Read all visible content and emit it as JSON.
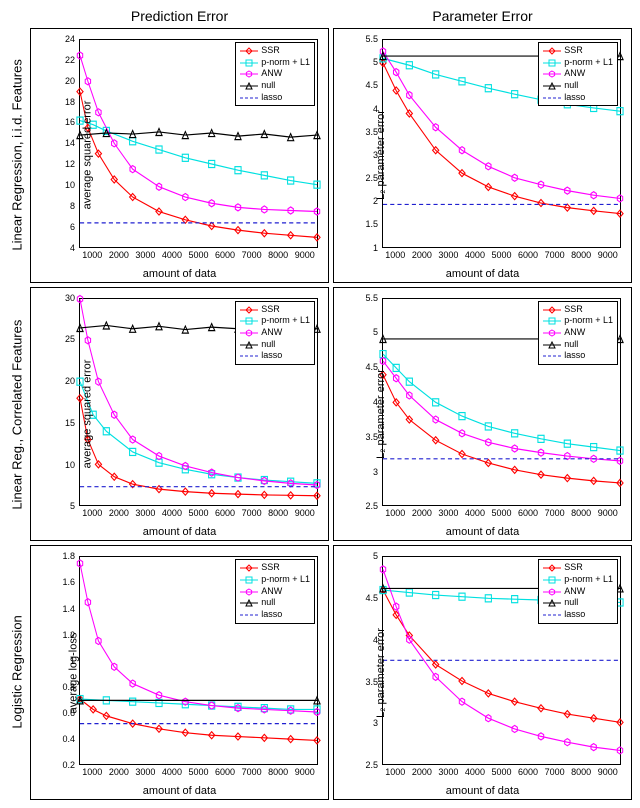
{
  "column_titles": [
    "Prediction Error",
    "Parameter Error"
  ],
  "row_titles": [
    "Linear Regression, i.i.d. Features",
    "Linear Reg., Correlated Features",
    "Logistic Regression"
  ],
  "xlabel": "amount of data",
  "xlim": [
    500,
    9500
  ],
  "xticks": [
    1000,
    2000,
    3000,
    4000,
    5000,
    6000,
    7000,
    8000,
    9000
  ],
  "legend": [
    {
      "label": "SSR",
      "color": "#ff0000",
      "marker": "diamond",
      "dash": false
    },
    {
      "label": "p-norm + L1",
      "color": "#00e0e0",
      "marker": "square",
      "dash": false
    },
    {
      "label": "ANW",
      "color": "#ff00ff",
      "marker": "hex",
      "dash": false
    },
    {
      "label": "null",
      "color": "#000000",
      "marker": "triangle",
      "dash": false
    },
    {
      "label": "lasso",
      "color": "#2020d0",
      "marker": null,
      "dash": true
    }
  ],
  "panels": [
    {
      "ylabel": "average squared error",
      "ylim": [
        4,
        24
      ],
      "yticks": [
        4,
        6,
        8,
        10,
        12,
        14,
        16,
        18,
        20,
        22,
        24
      ],
      "series": {
        "SSR": [
          [
            500,
            19
          ],
          [
            800,
            15.5
          ],
          [
            1200,
            13
          ],
          [
            1800,
            10.5
          ],
          [
            2500,
            8.8
          ],
          [
            3500,
            7.4
          ],
          [
            4500,
            6.6
          ],
          [
            5500,
            6.0
          ],
          [
            6500,
            5.6
          ],
          [
            7500,
            5.3
          ],
          [
            8500,
            5.1
          ],
          [
            9500,
            4.9
          ]
        ],
        "pnorm": [
          [
            500,
            16.2
          ],
          [
            1000,
            15.8
          ],
          [
            1500,
            15.2
          ],
          [
            2500,
            14.2
          ],
          [
            3500,
            13.4
          ],
          [
            4500,
            12.6
          ],
          [
            5500,
            12.0
          ],
          [
            6500,
            11.4
          ],
          [
            7500,
            10.9
          ],
          [
            8500,
            10.4
          ],
          [
            9500,
            10.0
          ]
        ],
        "ANW": [
          [
            500,
            22.5
          ],
          [
            800,
            20
          ],
          [
            1200,
            17
          ],
          [
            1800,
            14
          ],
          [
            2500,
            11.5
          ],
          [
            3500,
            9.8
          ],
          [
            4500,
            8.8
          ],
          [
            5500,
            8.2
          ],
          [
            6500,
            7.8
          ],
          [
            7500,
            7.6
          ],
          [
            8500,
            7.5
          ],
          [
            9500,
            7.4
          ]
        ],
        "null": [
          [
            500,
            14.8
          ],
          [
            1500,
            15.0
          ],
          [
            2500,
            14.9
          ],
          [
            3500,
            15.1
          ],
          [
            4500,
            14.8
          ],
          [
            5500,
            15.0
          ],
          [
            6500,
            14.7
          ],
          [
            7500,
            14.9
          ],
          [
            8500,
            14.6
          ],
          [
            9500,
            14.8
          ]
        ],
        "lasso": [
          [
            500,
            6.3
          ],
          [
            9500,
            6.3
          ]
        ]
      }
    },
    {
      "ylabel": "L₂ parameter error",
      "ylim": [
        1,
        5.5
      ],
      "yticks": [
        1,
        1.5,
        2,
        2.5,
        3,
        3.5,
        4,
        4.5,
        5,
        5.5
      ],
      "series": {
        "SSR": [
          [
            500,
            5.0
          ],
          [
            1000,
            4.4
          ],
          [
            1500,
            3.9
          ],
          [
            2500,
            3.1
          ],
          [
            3500,
            2.6
          ],
          [
            4500,
            2.3
          ],
          [
            5500,
            2.1
          ],
          [
            6500,
            1.95
          ],
          [
            7500,
            1.85
          ],
          [
            8500,
            1.78
          ],
          [
            9500,
            1.72
          ]
        ],
        "pnorm": [
          [
            500,
            5.1
          ],
          [
            1500,
            4.95
          ],
          [
            2500,
            4.75
          ],
          [
            3500,
            4.6
          ],
          [
            4500,
            4.45
          ],
          [
            5500,
            4.32
          ],
          [
            6500,
            4.2
          ],
          [
            7500,
            4.1
          ],
          [
            8500,
            4.02
          ],
          [
            9500,
            3.95
          ]
        ],
        "ANW": [
          [
            500,
            5.25
          ],
          [
            1000,
            4.8
          ],
          [
            1500,
            4.3
          ],
          [
            2500,
            3.6
          ],
          [
            3500,
            3.1
          ],
          [
            4500,
            2.75
          ],
          [
            5500,
            2.5
          ],
          [
            6500,
            2.35
          ],
          [
            7500,
            2.22
          ],
          [
            8500,
            2.12
          ],
          [
            9500,
            2.05
          ]
        ],
        "null": [
          [
            500,
            5.15
          ],
          [
            9500,
            5.15
          ]
        ],
        "lasso": [
          [
            500,
            1.92
          ],
          [
            9500,
            1.92
          ]
        ]
      }
    },
    {
      "ylabel": "average squared error",
      "ylim": [
        5,
        30
      ],
      "yticks": [
        5,
        10,
        15,
        20,
        25,
        30
      ],
      "series": {
        "SSR": [
          [
            500,
            18
          ],
          [
            800,
            13
          ],
          [
            1200,
            10
          ],
          [
            1800,
            8.5
          ],
          [
            2500,
            7.6
          ],
          [
            3500,
            7.0
          ],
          [
            4500,
            6.7
          ],
          [
            5500,
            6.5
          ],
          [
            6500,
            6.4
          ],
          [
            7500,
            6.3
          ],
          [
            8500,
            6.25
          ],
          [
            9500,
            6.2
          ]
        ],
        "pnorm": [
          [
            500,
            20
          ],
          [
            1000,
            16
          ],
          [
            1500,
            14
          ],
          [
            2500,
            11.5
          ],
          [
            3500,
            10.2
          ],
          [
            4500,
            9.4
          ],
          [
            5500,
            8.8
          ],
          [
            6500,
            8.4
          ],
          [
            7500,
            8.1
          ],
          [
            8500,
            7.9
          ],
          [
            9500,
            7.7
          ]
        ],
        "ANW": [
          [
            500,
            30
          ],
          [
            800,
            25
          ],
          [
            1200,
            20
          ],
          [
            1800,
            16
          ],
          [
            2500,
            13
          ],
          [
            3500,
            11
          ],
          [
            4500,
            9.8
          ],
          [
            5500,
            9.0
          ],
          [
            6500,
            8.4
          ],
          [
            7500,
            8.0
          ],
          [
            8500,
            7.7
          ],
          [
            9500,
            7.5
          ]
        ],
        "null": [
          [
            500,
            26.5
          ],
          [
            1500,
            26.8
          ],
          [
            2500,
            26.4
          ],
          [
            3500,
            26.7
          ],
          [
            4500,
            26.3
          ],
          [
            5500,
            26.6
          ],
          [
            6500,
            26.4
          ],
          [
            7500,
            26.5
          ],
          [
            8500,
            26.3
          ],
          [
            9500,
            26.4
          ]
        ],
        "lasso": [
          [
            500,
            7.3
          ],
          [
            9500,
            7.3
          ]
        ]
      }
    },
    {
      "ylabel": "L₂ parameter error",
      "ylim": [
        2.5,
        5.5
      ],
      "yticks": [
        2.5,
        3,
        3.5,
        4,
        4.5,
        5,
        5.5
      ],
      "series": {
        "SSR": [
          [
            500,
            4.4
          ],
          [
            1000,
            4.0
          ],
          [
            1500,
            3.75
          ],
          [
            2500,
            3.45
          ],
          [
            3500,
            3.25
          ],
          [
            4500,
            3.12
          ],
          [
            5500,
            3.02
          ],
          [
            6500,
            2.95
          ],
          [
            7500,
            2.9
          ],
          [
            8500,
            2.86
          ],
          [
            9500,
            2.83
          ]
        ],
        "pnorm": [
          [
            500,
            4.7
          ],
          [
            1000,
            4.5
          ],
          [
            1500,
            4.3
          ],
          [
            2500,
            4.0
          ],
          [
            3500,
            3.8
          ],
          [
            4500,
            3.65
          ],
          [
            5500,
            3.55
          ],
          [
            6500,
            3.47
          ],
          [
            7500,
            3.4
          ],
          [
            8500,
            3.35
          ],
          [
            9500,
            3.3
          ]
        ],
        "ANW": [
          [
            500,
            4.6
          ],
          [
            1000,
            4.35
          ],
          [
            1500,
            4.1
          ],
          [
            2500,
            3.75
          ],
          [
            3500,
            3.55
          ],
          [
            4500,
            3.42
          ],
          [
            5500,
            3.33
          ],
          [
            6500,
            3.27
          ],
          [
            7500,
            3.22
          ],
          [
            8500,
            3.18
          ],
          [
            9500,
            3.15
          ]
        ],
        "null": [
          [
            500,
            4.92
          ],
          [
            9500,
            4.92
          ]
        ],
        "lasso": [
          [
            500,
            3.18
          ],
          [
            9500,
            3.18
          ]
        ]
      }
    },
    {
      "ylabel": "average log-loss",
      "ylim": [
        0.2,
        1.8
      ],
      "yticks": [
        0.2,
        0.4,
        0.6,
        0.8,
        1,
        1.2,
        1.4,
        1.6,
        1.8
      ],
      "series": {
        "SSR": [
          [
            500,
            0.7
          ],
          [
            1000,
            0.62
          ],
          [
            1500,
            0.57
          ],
          [
            2500,
            0.51
          ],
          [
            3500,
            0.47
          ],
          [
            4500,
            0.44
          ],
          [
            5500,
            0.42
          ],
          [
            6500,
            0.41
          ],
          [
            7500,
            0.4
          ],
          [
            8500,
            0.39
          ],
          [
            9500,
            0.38
          ]
        ],
        "pnorm": [
          [
            500,
            0.7
          ],
          [
            1500,
            0.69
          ],
          [
            2500,
            0.68
          ],
          [
            3500,
            0.67
          ],
          [
            4500,
            0.66
          ],
          [
            5500,
            0.65
          ],
          [
            6500,
            0.64
          ],
          [
            7500,
            0.63
          ],
          [
            8500,
            0.62
          ],
          [
            9500,
            0.62
          ]
        ],
        "ANW": [
          [
            500,
            1.75
          ],
          [
            800,
            1.45
          ],
          [
            1200,
            1.15
          ],
          [
            1800,
            0.95
          ],
          [
            2500,
            0.82
          ],
          [
            3500,
            0.73
          ],
          [
            4500,
            0.68
          ],
          [
            5500,
            0.65
          ],
          [
            6500,
            0.63
          ],
          [
            7500,
            0.62
          ],
          [
            8500,
            0.61
          ],
          [
            9500,
            0.6
          ]
        ],
        "null": [
          [
            500,
            0.69
          ],
          [
            9500,
            0.69
          ]
        ],
        "lasso": [
          [
            500,
            0.51
          ],
          [
            9500,
            0.51
          ]
        ]
      }
    },
    {
      "ylabel": "L₂ parameter error",
      "ylim": [
        2.5,
        5
      ],
      "yticks": [
        2.5,
        3,
        3.5,
        4,
        4.5,
        5
      ],
      "series": {
        "SSR": [
          [
            500,
            4.6
          ],
          [
            1000,
            4.3
          ],
          [
            1500,
            4.05
          ],
          [
            2500,
            3.7
          ],
          [
            3500,
            3.5
          ],
          [
            4500,
            3.35
          ],
          [
            5500,
            3.25
          ],
          [
            6500,
            3.17
          ],
          [
            7500,
            3.1
          ],
          [
            8500,
            3.05
          ],
          [
            9500,
            3.0
          ]
        ],
        "pnorm": [
          [
            500,
            4.6
          ],
          [
            1500,
            4.57
          ],
          [
            2500,
            4.54
          ],
          [
            3500,
            4.52
          ],
          [
            4500,
            4.5
          ],
          [
            5500,
            4.49
          ],
          [
            6500,
            4.48
          ],
          [
            7500,
            4.47
          ],
          [
            8500,
            4.46
          ],
          [
            9500,
            4.45
          ]
        ],
        "ANW": [
          [
            500,
            4.85
          ],
          [
            1000,
            4.4
          ],
          [
            1500,
            4.0
          ],
          [
            2500,
            3.55
          ],
          [
            3500,
            3.25
          ],
          [
            4500,
            3.05
          ],
          [
            5500,
            2.92
          ],
          [
            6500,
            2.83
          ],
          [
            7500,
            2.76
          ],
          [
            8500,
            2.7
          ],
          [
            9500,
            2.66
          ]
        ],
        "null": [
          [
            500,
            4.62
          ],
          [
            9500,
            4.62
          ]
        ],
        "lasso": [
          [
            500,
            3.75
          ],
          [
            9500,
            3.75
          ]
        ]
      }
    }
  ]
}
